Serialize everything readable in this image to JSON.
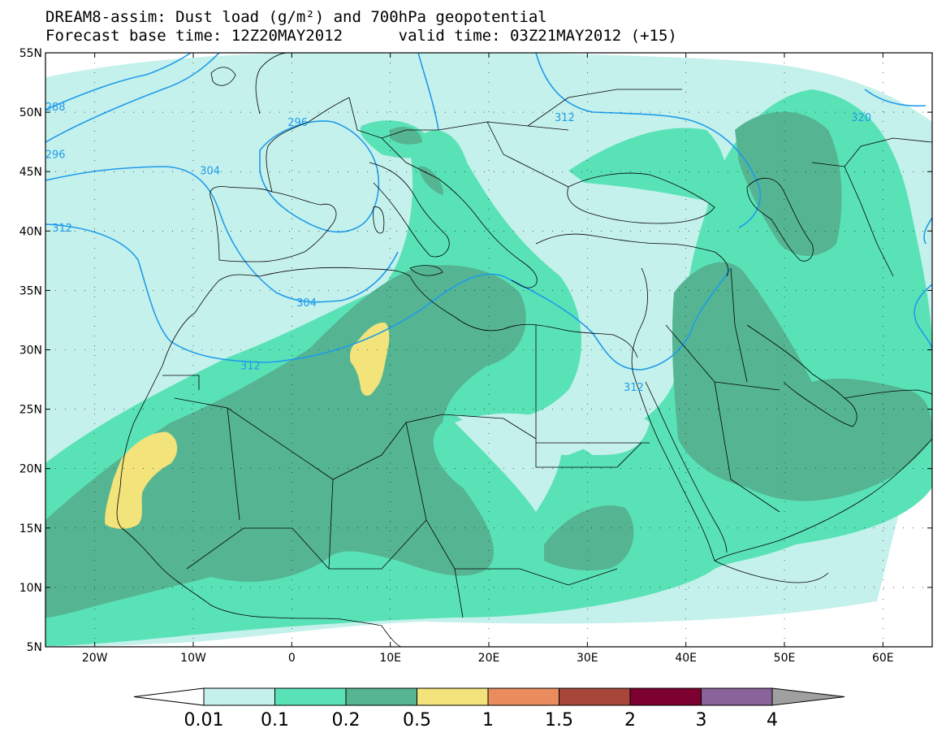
{
  "title_line1": "DREAM8-assim: Dust load (g/m²) and 700hPa geopotential",
  "title_line2": "Forecast base time: 12Z20MAY2012      valid time: 03Z21MAY2012 (+15)",
  "map": {
    "lon_range": [
      -25,
      65
    ],
    "lat_range": [
      5,
      55
    ],
    "lat_ticks": [
      "55N",
      "50N",
      "45N",
      "40N",
      "35N",
      "30N",
      "25N",
      "20N",
      "15N",
      "10N",
      "5N"
    ],
    "lon_ticks": [
      "20W",
      "10W",
      "0",
      "10E",
      "20E",
      "30E",
      "40E",
      "50E",
      "60E"
    ],
    "lat_tick_values": [
      55,
      50,
      45,
      40,
      35,
      30,
      25,
      20,
      15,
      10,
      5
    ],
    "lon_tick_values": [
      -20,
      -10,
      0,
      10,
      20,
      30,
      40,
      50,
      60
    ],
    "contour_color": "#1e9bea",
    "contour_labels": [
      {
        "text": "288",
        "lon": -24,
        "lat": 50.5
      },
      {
        "text": "296",
        "lon": -24,
        "lat": 46.5
      },
      {
        "text": "304",
        "lon": -8.3,
        "lat": 45.1
      },
      {
        "text": "312",
        "lon": -23.3,
        "lat": 40.3
      },
      {
        "text": "296",
        "lon": 0.6,
        "lat": 49.2
      },
      {
        "text": "304",
        "lon": 1.5,
        "lat": 34.0
      },
      {
        "text": "312",
        "lon": -4.2,
        "lat": 28.7
      },
      {
        "text": "312",
        "lon": 27.7,
        "lat": 49.6
      },
      {
        "text": "320",
        "lon": 57.8,
        "lat": 49.6
      },
      {
        "text": "312",
        "lon": 34.7,
        "lat": 26.9
      }
    ]
  },
  "colorbar": {
    "labels": [
      "0.01",
      "0.1",
      "0.2",
      "0.5",
      "1",
      "1.5",
      "2",
      "3",
      "4"
    ],
    "colors": [
      "#c5f1ec",
      "#5ae2b7",
      "#55b592",
      "#f2e37b",
      "#eb8c5f",
      "#a6473a",
      "#7d0130",
      "#896399"
    ],
    "under_color": "#ffffff",
    "over_color": "#a0a0a0"
  }
}
